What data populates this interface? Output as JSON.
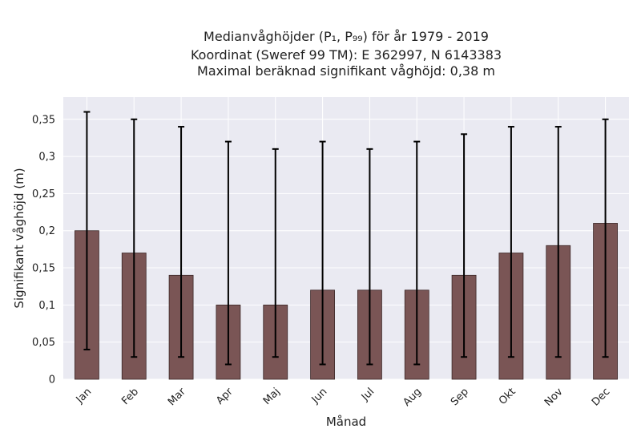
{
  "chart_data": {
    "type": "bar",
    "title_lines": [
      "Medianvåghöjder (P₁, P₉₉) för år 1979 - 2019",
      "Koordinat (Sweref 99 TM): E 362997, N 6143383",
      "Maximal beräknad signifikant våghöjd: 0,38 m"
    ],
    "xlabel": "Månad",
    "ylabel": "Signifikant våghöjd (m)",
    "categories": [
      "Jan",
      "Feb",
      "Mar",
      "Apr",
      "Maj",
      "Jun",
      "Jul",
      "Aug",
      "Sep",
      "Okt",
      "Nov",
      "Dec"
    ],
    "values": [
      0.2,
      0.17,
      0.14,
      0.1,
      0.1,
      0.12,
      0.12,
      0.12,
      0.14,
      0.17,
      0.18,
      0.21
    ],
    "p1": [
      0.04,
      0.03,
      0.03,
      0.02,
      0.03,
      0.02,
      0.02,
      0.02,
      0.03,
      0.03,
      0.03,
      0.03
    ],
    "p99": [
      0.36,
      0.35,
      0.34,
      0.32,
      0.31,
      0.32,
      0.31,
      0.32,
      0.33,
      0.34,
      0.34,
      0.35
    ],
    "ylim": [
      0,
      0.38
    ],
    "yticks": [
      0,
      0.05,
      0.1,
      0.15,
      0.2,
      0.25,
      0.3,
      0.35
    ],
    "ytick_labels": [
      "0",
      "0,05",
      "0,1",
      "0,15",
      "0,2",
      "0,25",
      "0,3",
      "0,35"
    ],
    "grid": true,
    "legend": "none",
    "colors": {
      "bar": "#7a5555",
      "bar_edge": "#3a2626",
      "plot_background": "#eaeaf2",
      "grid": "#ffffff",
      "error_bar": "#000000"
    }
  }
}
